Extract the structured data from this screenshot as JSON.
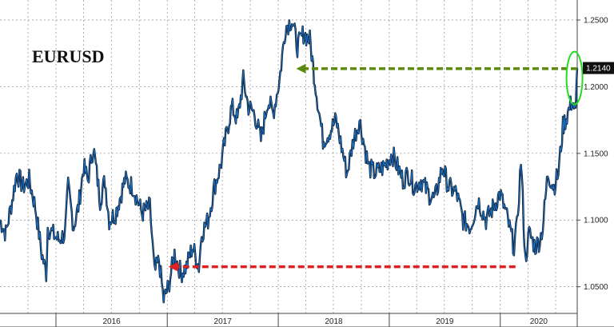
{
  "chart_data": {
    "type": "line",
    "title": "EURUSD",
    "xlabel": "",
    "ylabel": "",
    "x_ticks": [
      "2016",
      "2017",
      "2018",
      "2019",
      "2020"
    ],
    "y_ticks": [
      "1.2500",
      "1.2000",
      "1.1500",
      "1.1000",
      "1.0500"
    ],
    "ylim": [
      1.03,
      1.265
    ],
    "xlim": [
      "2015-07-01",
      "2020-09-10"
    ],
    "grid": true,
    "last_value_label": "1.2140",
    "series": [
      {
        "points": [
          [
            "2015-07-01",
            1.1
          ],
          [
            "2015-07-20",
            1.09
          ],
          [
            "2015-08-10",
            1.115
          ],
          [
            "2015-08-25",
            1.135
          ],
          [
            "2015-09-15",
            1.125
          ],
          [
            "2015-10-05",
            1.13
          ],
          [
            "2015-10-25",
            1.11
          ],
          [
            "2015-11-15",
            1.075
          ],
          [
            "2015-11-30",
            1.06
          ],
          [
            "2015-12-05",
            1.095
          ],
          [
            "2015-12-20",
            1.09
          ],
          [
            "2016-01-10",
            1.085
          ],
          [
            "2016-01-31",
            1.09
          ],
          [
            "2016-02-10",
            1.125
          ],
          [
            "2016-02-28",
            1.095
          ],
          [
            "2016-03-15",
            1.11
          ],
          [
            "2016-04-01",
            1.14
          ],
          [
            "2016-04-15",
            1.13
          ],
          [
            "2016-05-03",
            1.155
          ],
          [
            "2016-05-25",
            1.115
          ],
          [
            "2016-06-10",
            1.13
          ],
          [
            "2016-06-24",
            1.1
          ],
          [
            "2016-07-15",
            1.105
          ],
          [
            "2016-08-15",
            1.13
          ],
          [
            "2016-09-10",
            1.125
          ],
          [
            "2016-10-10",
            1.105
          ],
          [
            "2016-11-05",
            1.11
          ],
          [
            "2016-11-20",
            1.06
          ],
          [
            "2016-12-05",
            1.07
          ],
          [
            "2016-12-20",
            1.04
          ],
          [
            "2017-01-05",
            1.05
          ],
          [
            "2017-01-25",
            1.075
          ],
          [
            "2017-02-15",
            1.06
          ],
          [
            "2017-03-05",
            1.065
          ],
          [
            "2017-03-25",
            1.08
          ],
          [
            "2017-04-15",
            1.065
          ],
          [
            "2017-04-24",
            1.09
          ],
          [
            "2017-05-15",
            1.1
          ],
          [
            "2017-06-05",
            1.125
          ],
          [
            "2017-06-25",
            1.14
          ],
          [
            "2017-07-15",
            1.165
          ],
          [
            "2017-08-01",
            1.185
          ],
          [
            "2017-08-20",
            1.175
          ],
          [
            "2017-09-08",
            1.205
          ],
          [
            "2017-09-25",
            1.185
          ],
          [
            "2017-10-15",
            1.18
          ],
          [
            "2017-11-05",
            1.16
          ],
          [
            "2017-11-28",
            1.19
          ],
          [
            "2017-12-15",
            1.18
          ],
          [
            "2018-01-05",
            1.205
          ],
          [
            "2018-01-25",
            1.245
          ],
          [
            "2018-02-15",
            1.25
          ],
          [
            "2018-03-05",
            1.23
          ],
          [
            "2018-03-25",
            1.24
          ],
          [
            "2018-04-15",
            1.235
          ],
          [
            "2018-05-01",
            1.205
          ],
          [
            "2018-05-28",
            1.16
          ],
          [
            "2018-06-15",
            1.165
          ],
          [
            "2018-07-10",
            1.175
          ],
          [
            "2018-08-15",
            1.135
          ],
          [
            "2018-09-05",
            1.16
          ],
          [
            "2018-09-25",
            1.175
          ],
          [
            "2018-10-25",
            1.14
          ],
          [
            "2018-11-15",
            1.135
          ],
          [
            "2018-12-15",
            1.14
          ],
          [
            "2019-01-10",
            1.15
          ],
          [
            "2019-02-15",
            1.13
          ],
          [
            "2019-03-05",
            1.135
          ],
          [
            "2019-03-25",
            1.125
          ],
          [
            "2019-04-15",
            1.13
          ],
          [
            "2019-05-10",
            1.12
          ],
          [
            "2019-05-30",
            1.115
          ],
          [
            "2019-06-25",
            1.14
          ],
          [
            "2019-07-15",
            1.125
          ],
          [
            "2019-08-10",
            1.12
          ],
          [
            "2019-09-01",
            1.1
          ],
          [
            "2019-09-25",
            1.095
          ],
          [
            "2019-10-20",
            1.115
          ],
          [
            "2019-11-15",
            1.1
          ],
          [
            "2019-12-10",
            1.11
          ],
          [
            "2019-12-31",
            1.12
          ],
          [
            "2020-01-20",
            1.105
          ],
          [
            "2020-02-15",
            1.08
          ],
          [
            "2020-02-25",
            1.095
          ],
          [
            "2020-03-09",
            1.145
          ],
          [
            "2020-03-15",
            1.115
          ],
          [
            "2020-03-23",
            1.07
          ],
          [
            "2020-04-05",
            1.09
          ],
          [
            "2020-04-25",
            1.08
          ],
          [
            "2020-05-10",
            1.085
          ],
          [
            "2020-05-20",
            1.095
          ],
          [
            "2020-06-05",
            1.135
          ],
          [
            "2020-06-25",
            1.125
          ],
          [
            "2020-07-10",
            1.135
          ],
          [
            "2020-07-25",
            1.17
          ],
          [
            "2020-08-10",
            1.18
          ],
          [
            "2020-08-25",
            1.19
          ],
          [
            "2020-09-05",
            1.18
          ],
          [
            "2020-09-10",
            1.214
          ]
        ]
      }
    ],
    "annotations": [
      {
        "type": "dashed-arrow",
        "color": "#5a8a0f",
        "from": [
          "2020-09-10",
          1.2135
        ],
        "to": [
          "2018-03-01",
          1.2135
        ]
      },
      {
        "type": "dashed-arrow",
        "color": "#e02020",
        "from": [
          "2020-02-20",
          1.065
        ],
        "to": [
          "2017-01-05",
          1.065
        ]
      },
      {
        "type": "ellipse",
        "color": "#22dd22",
        "center": [
          "2020-09-01",
          1.2065
        ]
      }
    ],
    "colors": {
      "line": "#1e6fc2",
      "line_shadow": "#0a1a2a",
      "last_box": "#111111",
      "grid": "#8c8c8c"
    }
  }
}
